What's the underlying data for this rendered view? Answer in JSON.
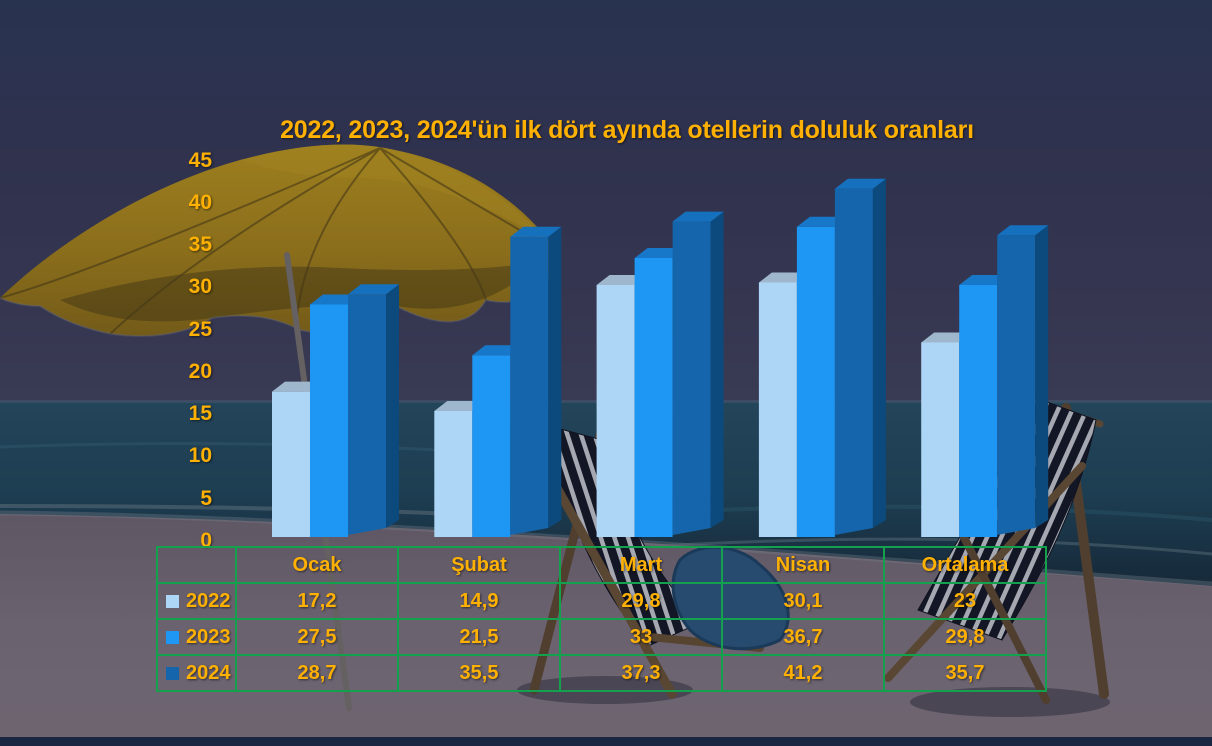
{
  "chart_data": {
    "type": "bar",
    "style": "3d-clustered-column-with-data-table",
    "title": "2022, 2023, 2024'ün ilk dört ayında otellerin doluluk oranları",
    "categories": [
      "Ocak",
      "Şubat",
      "Mart",
      "Nisan",
      "Ortalama"
    ],
    "series": [
      {
        "name": "2022",
        "values": [
          17.2,
          14.9,
          29.8,
          30.1,
          23
        ],
        "display": [
          "17,2",
          "14,9",
          "29,8",
          "30,1",
          "23"
        ],
        "color_front": "#ADD5F6",
        "color_top": "#9EB7CD"
      },
      {
        "name": "2023",
        "values": [
          27.5,
          21.5,
          33,
          36.7,
          29.8
        ],
        "display": [
          "27,5",
          "21,5",
          "33",
          "36,7",
          "29,8"
        ],
        "color_front": "#1E96F3",
        "color_top": "#1778C9"
      },
      {
        "name": "2024",
        "values": [
          28.7,
          35.5,
          37.3,
          41.2,
          35.7
        ],
        "display": [
          "28,7",
          "35,5",
          "37,3",
          "41,2",
          "35,7"
        ],
        "color_front": "#1465AC",
        "color_top": "#1571BE",
        "color_side": "#0C4A7D"
      }
    ],
    "ylim": [
      0,
      45
    ],
    "ytick_step": 5,
    "yticks": [
      "45",
      "40",
      "35",
      "30",
      "25",
      "20",
      "15",
      "10",
      "5",
      "0"
    ],
    "grid_on": false,
    "legend_position": "data-table-left-column",
    "text_color": "#FFB103",
    "table_grid_color": "#14A14D"
  },
  "background_scene": {
    "elements": [
      "night-sky",
      "sea-with-waves",
      "sandy-beach",
      "yellow-beach-umbrella",
      "umbrella-pole",
      "striped-deck-chair-left",
      "striped-deck-chair-right",
      "blue-towel"
    ],
    "umbrella_color": "#C79A12",
    "sea_color": "#215064",
    "sand_color": "#877A81"
  }
}
